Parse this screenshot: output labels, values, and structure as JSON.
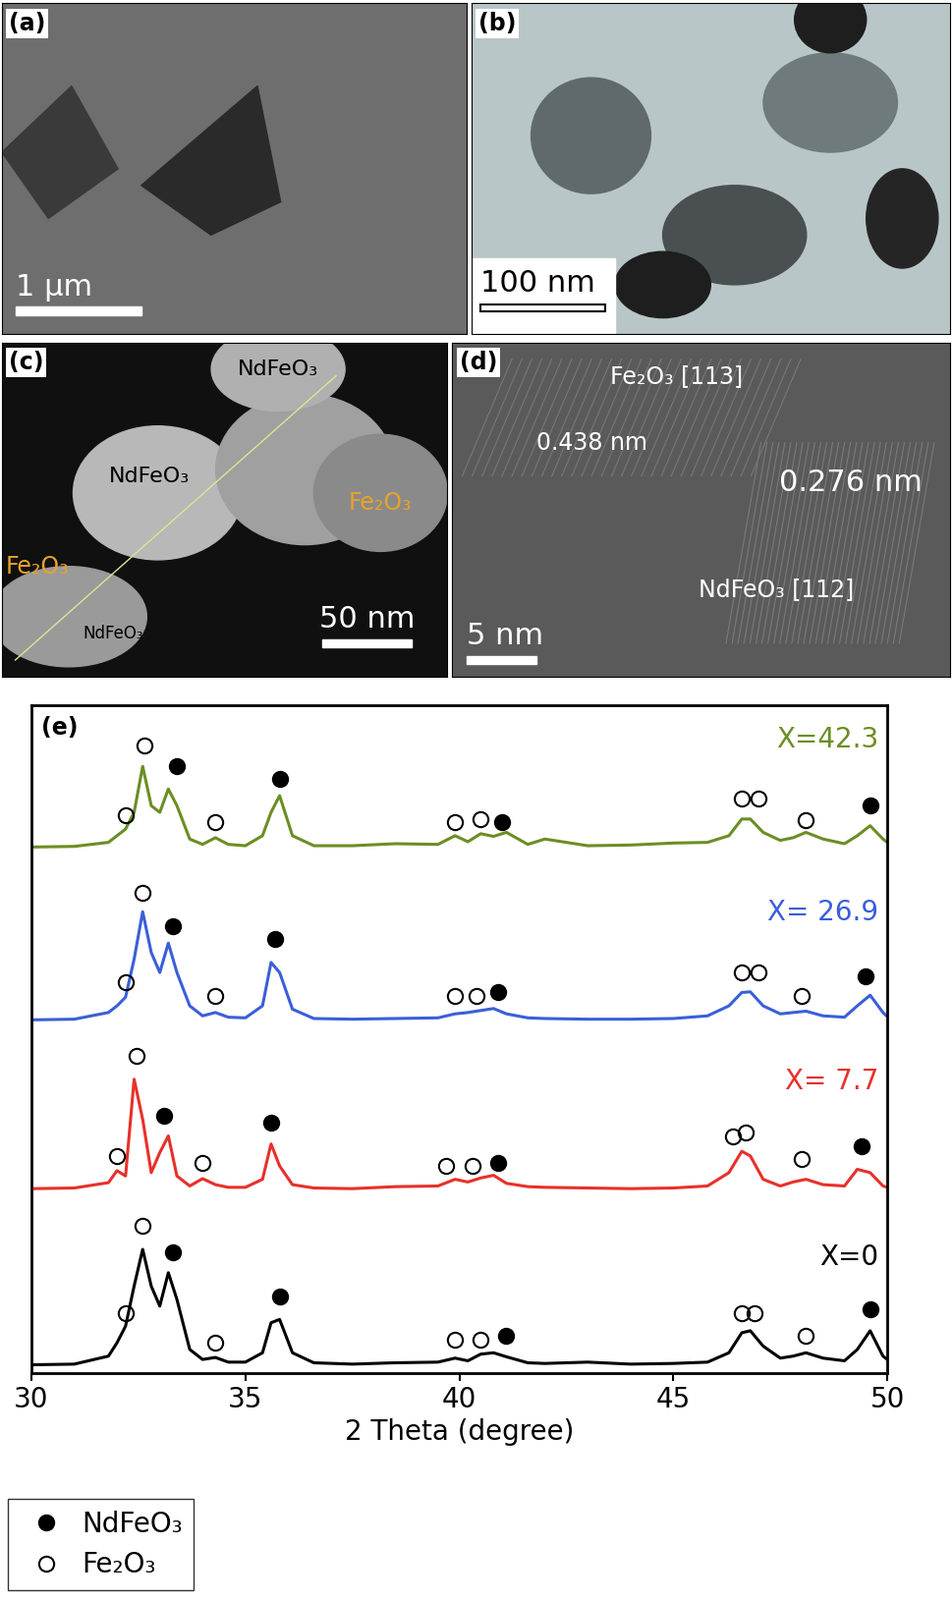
{
  "panels": [
    {
      "label": "(a)",
      "scale_bar": "1 µm"
    },
    {
      "label": "(b)",
      "scale_bar": "100 nm"
    },
    {
      "label": "(c)",
      "scale_bar": "50 nm",
      "annotations": [
        "NdFeO₃",
        "NdFeO₃",
        "NdFeO₃",
        "Fe₂O₃",
        "Fe₂O₃"
      ]
    },
    {
      "label": "(d)",
      "scale_bar": "5 nm",
      "annotations": [
        "Fe₂O₃ [113]",
        "0.438 nm",
        "0.276 nm",
        "NdFeO₃ [112]"
      ]
    }
  ],
  "chart_data": {
    "type": "line",
    "title": "(e)",
    "x_label": "2 Theta (degree)",
    "xlim": [
      30,
      50
    ],
    "xticks": [
      30,
      35,
      40,
      45,
      50
    ],
    "ylim": [
      0,
      100
    ],
    "yticks": [],
    "tick_labels": "x",
    "legend": "lower left",
    "phases": [
      {
        "name": "NdFeO₃",
        "marker": "filled"
      },
      {
        "name": "Fe₂O₃",
        "marker": "open"
      }
    ],
    "x": [
      30,
      31,
      31.8,
      32.0,
      32.2,
      32.4,
      32.6,
      32.8,
      33.0,
      33.2,
      33.4,
      33.7,
      34.0,
      34.3,
      34.6,
      35.0,
      35.4,
      35.6,
      35.8,
      36.1,
      36.6,
      37.5,
      38.5,
      39.5,
      39.9,
      40.2,
      40.5,
      40.8,
      41.1,
      41.6,
      42.0,
      43,
      44,
      45,
      45.8,
      46.3,
      46.6,
      46.8,
      47.1,
      47.5,
      47.8,
      48.1,
      48.5,
      49.0,
      49.3,
      49.6,
      49.9,
      50
    ],
    "series": [
      {
        "name": "X=0",
        "color": "#000000",
        "values": [
          1.2,
          1.3,
          2.5,
          4.5,
          7.0,
          13,
          18.5,
          13,
          10,
          15,
          11,
          3.5,
          2,
          2.3,
          1.6,
          1.6,
          3,
          7.5,
          8,
          3,
          1.5,
          1.3,
          1.5,
          1.6,
          2.2,
          1.8,
          2.8,
          3.0,
          2.4,
          1.5,
          1.4,
          1.6,
          1.3,
          1.4,
          1.6,
          3,
          6,
          6.3,
          4,
          2.2,
          2.5,
          3,
          2.2,
          1.8,
          3.5,
          6.3,
          2.5,
          2
        ],
        "peak_markers": [
          {
            "x": 32.2,
            "y": 9,
            "phase": "Fe₂O₃"
          },
          {
            "x": 32.6,
            "y": 22,
            "phase": "Fe₂O₃"
          },
          {
            "x": 33.3,
            "y": 18,
            "phase": "NdFeO₃"
          },
          {
            "x": 34.3,
            "y": 4.5,
            "phase": "Fe₂O₃"
          },
          {
            "x": 35.8,
            "y": 11.5,
            "phase": "NdFeO₃"
          },
          {
            "x": 39.9,
            "y": 5,
            "phase": "Fe₂O₃"
          },
          {
            "x": 40.5,
            "y": 5,
            "phase": "Fe₂O₃"
          },
          {
            "x": 41.1,
            "y": 5.5,
            "phase": "NdFeO₃"
          },
          {
            "x": 46.6,
            "y": 9,
            "phase": "Fe₂O₃"
          },
          {
            "x": 46.9,
            "y": 9,
            "phase": "Fe₂O₃"
          },
          {
            "x": 48.1,
            "y": 5.5,
            "phase": "Fe₂O₃"
          },
          {
            "x": 49.6,
            "y": 9.5,
            "phase": "NdFeO₃"
          }
        ]
      },
      {
        "name": "X= 7.7",
        "color": "#e8302a",
        "values": [
          27.6,
          27.7,
          28.5,
          30.3,
          29.5,
          44,
          38,
          30,
          33,
          35.5,
          29.5,
          28,
          29.1,
          28.2,
          27.8,
          27.8,
          29,
          34.3,
          31,
          28.2,
          27.7,
          27.6,
          27.9,
          28,
          29,
          28.6,
          29.2,
          29.6,
          28.4,
          27.9,
          27.8,
          27.7,
          27.6,
          27.7,
          28,
          30,
          33.2,
          32.5,
          29,
          28,
          28.6,
          29,
          28.2,
          28,
          30.5,
          30,
          28,
          27.8
        ],
        "peak_markers": [
          {
            "x": 32.0,
            "y": 32.5,
            "phase": "Fe₂O₃"
          },
          {
            "x": 32.45,
            "y": 47.5,
            "phase": "Fe₂O₃"
          },
          {
            "x": 33.1,
            "y": 38.5,
            "phase": "NdFeO₃"
          },
          {
            "x": 34.0,
            "y": 31.5,
            "phase": "Fe₂O₃"
          },
          {
            "x": 35.6,
            "y": 37.5,
            "phase": "NdFeO₃"
          },
          {
            "x": 39.7,
            "y": 31,
            "phase": "Fe₂O₃"
          },
          {
            "x": 40.3,
            "y": 31,
            "phase": "Fe₂O₃"
          },
          {
            "x": 40.9,
            "y": 31.5,
            "phase": "NdFeO₃"
          },
          {
            "x": 46.4,
            "y": 35.5,
            "phase": "Fe₂O₃"
          },
          {
            "x": 46.7,
            "y": 36,
            "phase": "Fe₂O₃"
          },
          {
            "x": 48.0,
            "y": 32,
            "phase": "Fe₂O₃"
          },
          {
            "x": 49.4,
            "y": 34,
            "phase": "NdFeO₃"
          }
        ]
      },
      {
        "name": "X= 26.9",
        "color": "#3a5fd9",
        "values": [
          52.9,
          53,
          54,
          55,
          56.3,
          62,
          69.1,
          63,
          60,
          64.4,
          60,
          55,
          53.5,
          54,
          53.3,
          53.2,
          55,
          61.5,
          60,
          54.5,
          53.1,
          53,
          53.1,
          53.2,
          53.8,
          54,
          54.3,
          54.6,
          53.8,
          53.2,
          53.1,
          53,
          53,
          53.1,
          53.5,
          55,
          57,
          57.1,
          55,
          53.8,
          54,
          54.2,
          53.5,
          53.3,
          55,
          56.6,
          54,
          53.4
        ],
        "peak_markers": [
          {
            "x": 32.2,
            "y": 58.5,
            "phase": "Fe₂O₃"
          },
          {
            "x": 32.6,
            "y": 72,
            "phase": "Fe₂O₃"
          },
          {
            "x": 33.3,
            "y": 67,
            "phase": "NdFeO₃"
          },
          {
            "x": 34.3,
            "y": 56.5,
            "phase": "Fe₂O₃"
          },
          {
            "x": 35.7,
            "y": 65,
            "phase": "NdFeO₃"
          },
          {
            "x": 39.9,
            "y": 56.5,
            "phase": "Fe₂O₃"
          },
          {
            "x": 40.4,
            "y": 56.5,
            "phase": "Fe₂O₃"
          },
          {
            "x": 40.9,
            "y": 57,
            "phase": "NdFeO₃"
          },
          {
            "x": 46.6,
            "y": 60,
            "phase": "Fe₂O₃"
          },
          {
            "x": 47.0,
            "y": 60,
            "phase": "Fe₂O₃"
          },
          {
            "x": 48.0,
            "y": 56.5,
            "phase": "Fe₂O₃"
          },
          {
            "x": 49.5,
            "y": 59.5,
            "phase": "NdFeO₃"
          }
        ]
      },
      {
        "name": "X=42.3",
        "color": "#6b8e23",
        "values": [
          78.8,
          78.9,
          79.5,
          80.5,
          81.5,
          84,
          90.9,
          85,
          84,
          87.5,
          85,
          80,
          79.2,
          80.2,
          79.2,
          79,
          80.5,
          84,
          86.5,
          80.5,
          79,
          79,
          79.3,
          79.2,
          80.5,
          79.6,
          80.8,
          80.4,
          81,
          79.2,
          80,
          79,
          79.1,
          79.4,
          79.5,
          80.5,
          83,
          83,
          81,
          79.8,
          80.2,
          81,
          80,
          79.3,
          80.5,
          82,
          80,
          79.5
        ],
        "peak_markers": [
          {
            "x": 32.2,
            "y": 83.5,
            "phase": "Fe₂O₃"
          },
          {
            "x": 32.65,
            "y": 94,
            "phase": "Fe₂O₃"
          },
          {
            "x": 33.4,
            "y": 91,
            "phase": "NdFeO₃"
          },
          {
            "x": 34.3,
            "y": 82.5,
            "phase": "Fe₂O₃"
          },
          {
            "x": 35.8,
            "y": 89,
            "phase": "NdFeO₃"
          },
          {
            "x": 39.9,
            "y": 82.5,
            "phase": "Fe₂O₃"
          },
          {
            "x": 40.5,
            "y": 83,
            "phase": "Fe₂O₃"
          },
          {
            "x": 41.0,
            "y": 82.5,
            "phase": "NdFeO₃"
          },
          {
            "x": 46.6,
            "y": 86,
            "phase": "Fe₂O₃"
          },
          {
            "x": 47.0,
            "y": 86,
            "phase": "Fe₂O₃"
          },
          {
            "x": 48.1,
            "y": 82.8,
            "phase": "Fe₂O₃"
          },
          {
            "x": 49.6,
            "y": 85,
            "phase": "NdFeO₃"
          }
        ]
      }
    ]
  }
}
